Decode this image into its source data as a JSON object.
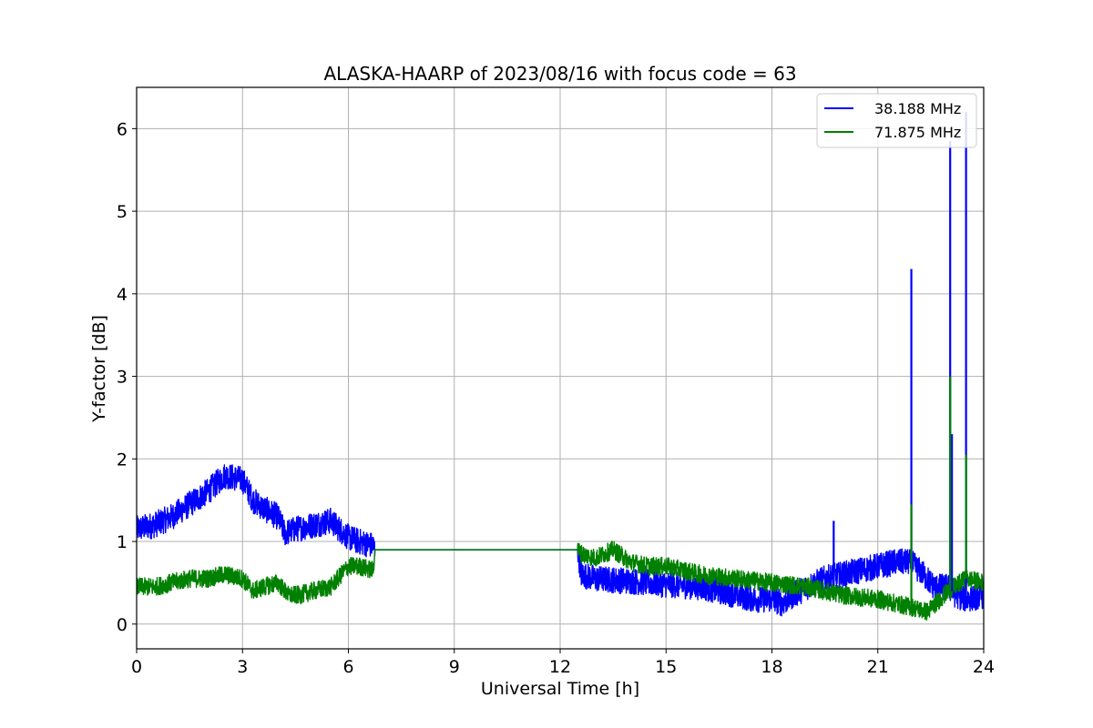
{
  "chart_data": {
    "type": "line",
    "title": "ALASKA-HAARP of 2023/08/16 with focus code = 63",
    "xlabel": "Universal Time [h]",
    "ylabel": "Y-factor [dB]",
    "xlim": [
      0,
      24
    ],
    "ylim": [
      -0.3,
      6.5
    ],
    "xticks": [
      0,
      3,
      6,
      9,
      12,
      15,
      18,
      21,
      24
    ],
    "yticks": [
      0,
      1,
      2,
      3,
      4,
      5,
      6
    ],
    "grid": true,
    "legend_position": "top-right",
    "series": [
      {
        "name": "38.188 MHz",
        "color": "#0000ff",
        "x": [
          0,
          0.5,
          1,
          1.5,
          2,
          2.5,
          3,
          3.3,
          3.6,
          4,
          4.2,
          4.5,
          5,
          5.5,
          6,
          6.3,
          6.7,
          6.75,
          9,
          12,
          12.5,
          12.6,
          13,
          14,
          15,
          16,
          17,
          17.5,
          18,
          18.3,
          18.6,
          19,
          19.5,
          20,
          20.5,
          21,
          21.5,
          21.9,
          22,
          22.3,
          22.6,
          23,
          23.1,
          23.2,
          23.5,
          24
        ],
        "y": [
          1.15,
          1.2,
          1.3,
          1.45,
          1.6,
          1.8,
          1.75,
          1.5,
          1.4,
          1.3,
          1.1,
          1.15,
          1.2,
          1.25,
          1.05,
          1.0,
          0.95,
          0.9,
          0.9,
          0.9,
          0.9,
          0.6,
          0.55,
          0.52,
          0.48,
          0.45,
          0.35,
          0.3,
          0.3,
          0.25,
          0.35,
          0.45,
          0.55,
          0.6,
          0.65,
          0.7,
          0.75,
          0.75,
          0.72,
          0.6,
          0.45,
          0.45,
          0.4,
          0.35,
          0.3,
          0.35
        ]
      },
      {
        "name": "71.875 MHz",
        "color": "#008000",
        "x": [
          0,
          0.5,
          1,
          1.5,
          2,
          2.5,
          3,
          3.3,
          3.6,
          4,
          4.3,
          4.6,
          5,
          5.5,
          6,
          6.3,
          6.7,
          6.75,
          9,
          12,
          12.5,
          12.6,
          13,
          13.5,
          14,
          14.5,
          15,
          16,
          17,
          18,
          19,
          20,
          21,
          22,
          22.4,
          23,
          23.5,
          24
        ],
        "y": [
          0.45,
          0.45,
          0.5,
          0.55,
          0.55,
          0.6,
          0.55,
          0.4,
          0.45,
          0.5,
          0.35,
          0.35,
          0.4,
          0.45,
          0.7,
          0.7,
          0.65,
          0.9,
          0.9,
          0.9,
          0.9,
          0.85,
          0.8,
          0.9,
          0.75,
          0.7,
          0.7,
          0.6,
          0.55,
          0.5,
          0.45,
          0.35,
          0.3,
          0.2,
          0.15,
          0.4,
          0.55,
          0.5
        ]
      }
    ],
    "spikes": [
      {
        "series": 0,
        "x": 21.95,
        "peak": 4.3
      },
      {
        "series": 0,
        "x": 23.05,
        "peak": 5.85
      },
      {
        "series": 0,
        "x": 23.1,
        "peak": 2.3
      },
      {
        "series": 0,
        "x": 23.5,
        "peak": 6.2
      },
      {
        "series": 0,
        "x": 19.75,
        "peak": 1.25
      },
      {
        "series": 1,
        "x": 21.95,
        "peak": 1.45
      },
      {
        "series": 1,
        "x": 23.05,
        "peak": 3.0
      },
      {
        "series": 1,
        "x": 23.5,
        "peak": 2.05
      }
    ]
  }
}
